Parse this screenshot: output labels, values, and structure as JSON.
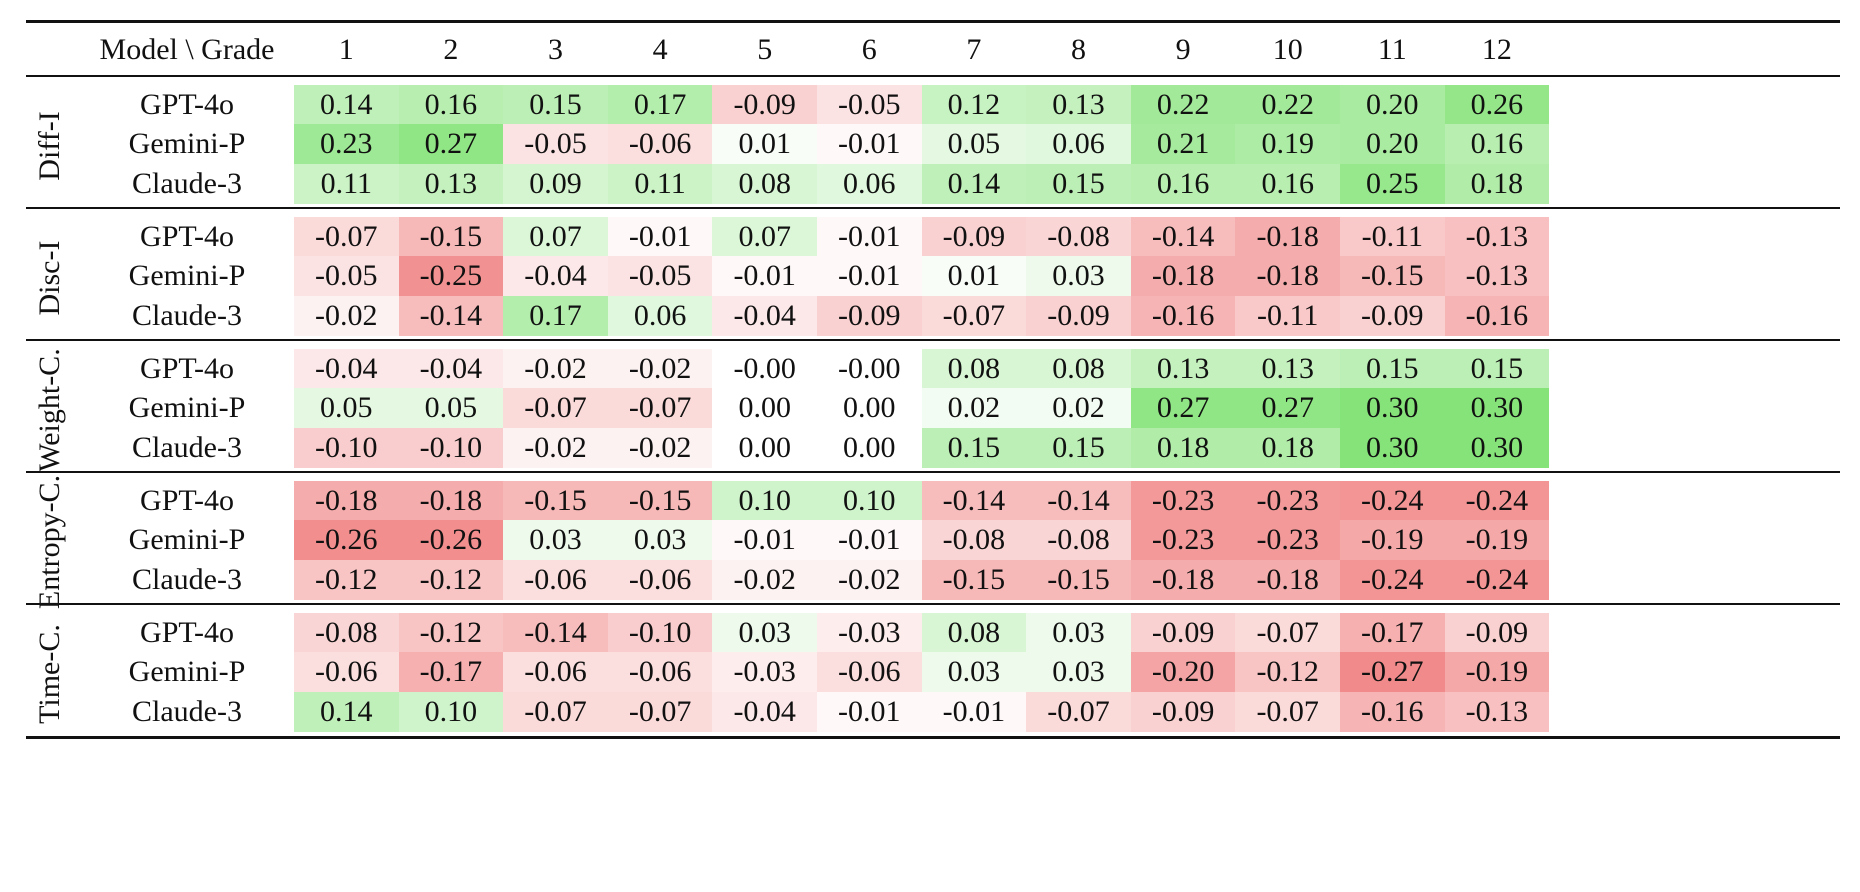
{
  "chart_data": {
    "type": "heatmap",
    "header_label": "Model \\ Grade",
    "columns": [
      "1",
      "2",
      "3",
      "4",
      "5",
      "6",
      "7",
      "8",
      "9",
      "10",
      "11",
      "12"
    ],
    "groups": [
      {
        "name": "Diff-I",
        "rows": [
          {
            "model": "GPT-4o",
            "values": [
              "0.14",
              "0.16",
              "0.15",
              "0.17",
              "-0.09",
              "-0.05",
              "0.12",
              "0.13",
              "0.22",
              "0.22",
              "0.20",
              "0.26"
            ]
          },
          {
            "model": "Gemini-P",
            "values": [
              "0.23",
              "0.27",
              "-0.05",
              "-0.06",
              "0.01",
              "-0.01",
              "0.05",
              "0.06",
              "0.21",
              "0.19",
              "0.20",
              "0.16"
            ]
          },
          {
            "model": "Claude-3",
            "values": [
              "0.11",
              "0.13",
              "0.09",
              "0.11",
              "0.08",
              "0.06",
              "0.14",
              "0.15",
              "0.16",
              "0.16",
              "0.25",
              "0.18"
            ]
          }
        ]
      },
      {
        "name": "Disc-I",
        "rows": [
          {
            "model": "GPT-4o",
            "values": [
              "-0.07",
              "-0.15",
              "0.07",
              "-0.01",
              "0.07",
              "-0.01",
              "-0.09",
              "-0.08",
              "-0.14",
              "-0.18",
              "-0.11",
              "-0.13"
            ]
          },
          {
            "model": "Gemini-P",
            "values": [
              "-0.05",
              "-0.25",
              "-0.04",
              "-0.05",
              "-0.01",
              "-0.01",
              "0.01",
              "0.03",
              "-0.18",
              "-0.18",
              "-0.15",
              "-0.13"
            ]
          },
          {
            "model": "Claude-3",
            "values": [
              "-0.02",
              "-0.14",
              "0.17",
              "0.06",
              "-0.04",
              "-0.09",
              "-0.07",
              "-0.09",
              "-0.16",
              "-0.11",
              "-0.09",
              "-0.16"
            ]
          }
        ]
      },
      {
        "name": "Weight-C.",
        "rows": [
          {
            "model": "GPT-4o",
            "values": [
              "-0.04",
              "-0.04",
              "-0.02",
              "-0.02",
              "-0.00",
              "-0.00",
              "0.08",
              "0.08",
              "0.13",
              "0.13",
              "0.15",
              "0.15"
            ]
          },
          {
            "model": "Gemini-P",
            "values": [
              "0.05",
              "0.05",
              "-0.07",
              "-0.07",
              "0.00",
              "0.00",
              "0.02",
              "0.02",
              "0.27",
              "0.27",
              "0.30",
              "0.30"
            ]
          },
          {
            "model": "Claude-3",
            "values": [
              "-0.10",
              "-0.10",
              "-0.02",
              "-0.02",
              "0.00",
              "0.00",
              "0.15",
              "0.15",
              "0.18",
              "0.18",
              "0.30",
              "0.30"
            ]
          }
        ]
      },
      {
        "name": "Entropy-C.",
        "rows": [
          {
            "model": "GPT-4o",
            "values": [
              "-0.18",
              "-0.18",
              "-0.15",
              "-0.15",
              "0.10",
              "0.10",
              "-0.14",
              "-0.14",
              "-0.23",
              "-0.23",
              "-0.24",
              "-0.24"
            ]
          },
          {
            "model": "Gemini-P",
            "values": [
              "-0.26",
              "-0.26",
              "0.03",
              "0.03",
              "-0.01",
              "-0.01",
              "-0.08",
              "-0.08",
              "-0.23",
              "-0.23",
              "-0.19",
              "-0.19"
            ]
          },
          {
            "model": "Claude-3",
            "values": [
              "-0.12",
              "-0.12",
              "-0.06",
              "-0.06",
              "-0.02",
              "-0.02",
              "-0.15",
              "-0.15",
              "-0.18",
              "-0.18",
              "-0.24",
              "-0.24"
            ]
          }
        ]
      },
      {
        "name": "Time-C.",
        "rows": [
          {
            "model": "GPT-4o",
            "values": [
              "-0.08",
              "-0.12",
              "-0.14",
              "-0.10",
              "0.03",
              "-0.03",
              "0.08",
              "0.03",
              "-0.09",
              "-0.07",
              "-0.17",
              "-0.09"
            ]
          },
          {
            "model": "Gemini-P",
            "values": [
              "-0.06",
              "-0.17",
              "-0.06",
              "-0.06",
              "-0.03",
              "-0.06",
              "0.03",
              "0.03",
              "-0.20",
              "-0.12",
              "-0.27",
              "-0.19"
            ]
          },
          {
            "model": "Claude-3",
            "values": [
              "0.14",
              "0.10",
              "-0.07",
              "-0.07",
              "-0.04",
              "-0.01",
              "-0.01",
              "-0.07",
              "-0.09",
              "-0.07",
              "-0.16",
              "-0.13"
            ]
          }
        ]
      }
    ],
    "colors": {
      "positive": "#86e37a",
      "negative": "#f07f7f",
      "text": "#111111",
      "rule": "#111111"
    },
    "max_abs_value": 0.3
  }
}
